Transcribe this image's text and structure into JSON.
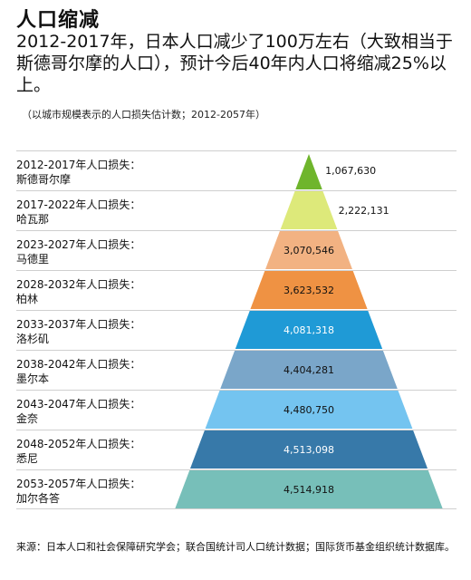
{
  "title": "人口缩减",
  "headline": "2012-2017年，日本人口减少了100万左右（大致相当于斯德哥尔摩的人口），预计今后40年内人口将缩减25%以上。",
  "note": "（以城市规模表示的人口损失估计数；2012-2057年）",
  "source": "来源：日本人口和社会保障研究学会；联合国统计司人口统计数据；国际货币基金组织统计数据库。",
  "chart_data": {
    "type": "bar",
    "categories": [
      {
        "period": "2012-2017年人口损失：",
        "city": "斯德哥尔摩"
      },
      {
        "period": "2017-2022年人口损失：",
        "city": "哈瓦那"
      },
      {
        "period": "2023-2027年人口损失：",
        "city": "马德里"
      },
      {
        "period": "2028-2032年人口损失：",
        "city": "柏林"
      },
      {
        "period": "2033-2037年人口损失：",
        "city": "洛杉矶"
      },
      {
        "period": "2038-2042年人口损失：",
        "city": "墨尔本"
      },
      {
        "period": "2043-2047年人口损失：",
        "city": "金奈"
      },
      {
        "period": "2048-2052年人口损失：",
        "city": "悉尼"
      },
      {
        "period": "2053-2057年人口损失：",
        "city": "加尔各答"
      }
    ],
    "values": [
      1067630,
      2222131,
      3070546,
      3623532,
      4081318,
      4404281,
      4480750,
      4513098,
      4514918
    ],
    "value_labels": [
      "1,067,630",
      "2,222,131",
      "3,070,546",
      "3,623,532",
      "4,081,318",
      "4,404,281",
      "4,480,750",
      "4,513,098",
      "4,514,918"
    ],
    "colors": [
      "#6fb52c",
      "#dde97a",
      "#f2b282",
      "#ef9243",
      "#1f9ad6",
      "#7aa6c9",
      "#74c4f0",
      "#3779a9",
      "#77bfb9"
    ],
    "label_colors": [
      "#111111",
      "#111111",
      "#111111",
      "#111111",
      "#ffffff",
      "#111111",
      "#111111",
      "#ffffff",
      "#111111"
    ],
    "shape": "pyramid"
  }
}
